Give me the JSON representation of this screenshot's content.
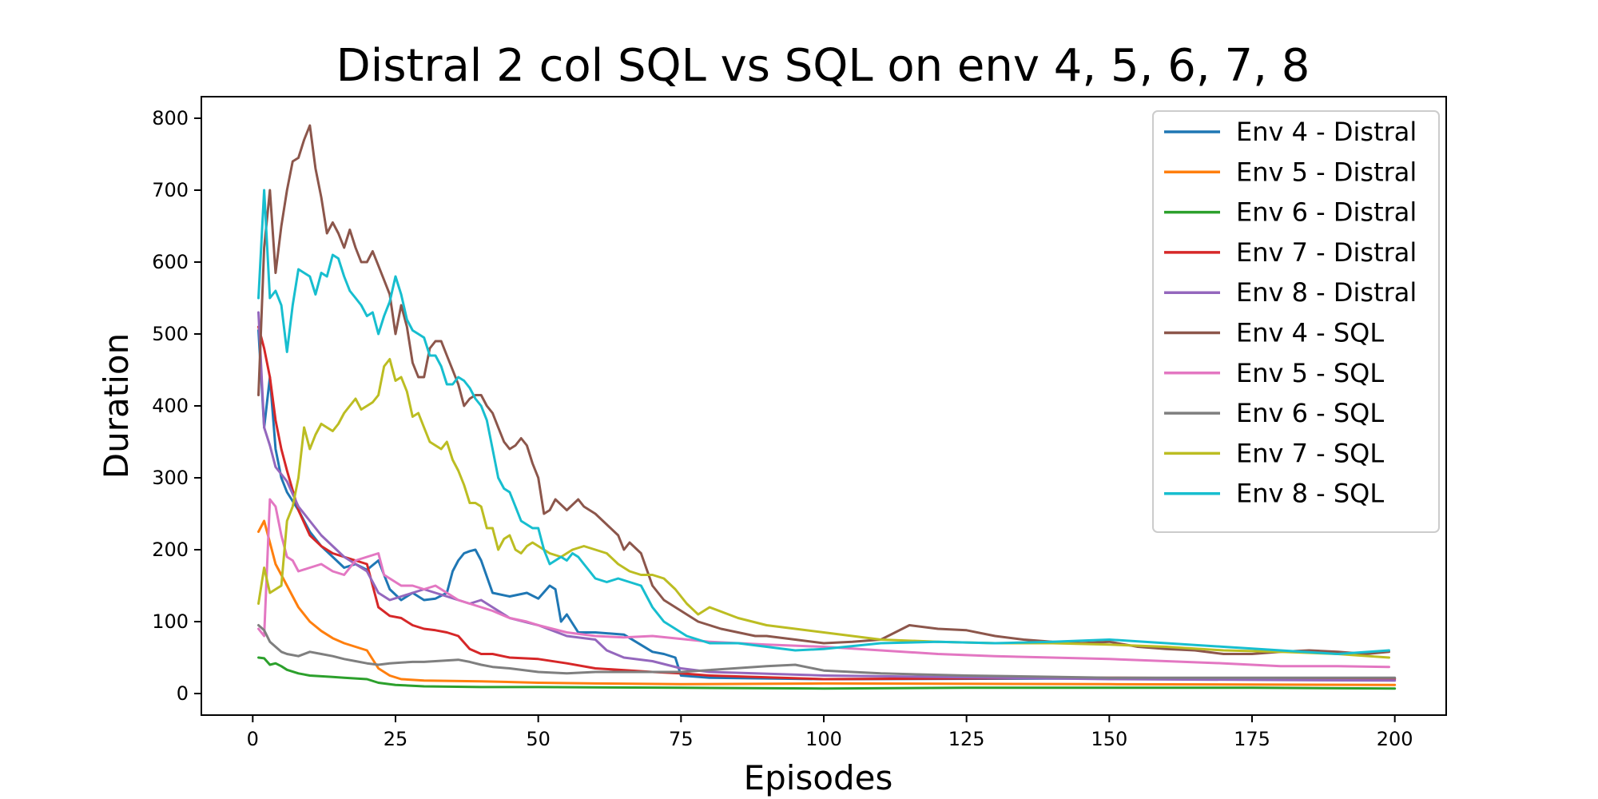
{
  "chart_data": {
    "type": "line",
    "title": "Distral 2 col SQL vs SQL on env 4, 5, 6, 7, 8",
    "xlabel": "Episodes",
    "ylabel": "Duration",
    "xlim": [
      -9,
      209
    ],
    "ylim": [
      -30,
      830
    ],
    "xticks": [
      0,
      25,
      50,
      75,
      100,
      125,
      150,
      175,
      200
    ],
    "yticks": [
      0,
      100,
      200,
      300,
      400,
      500,
      600,
      700,
      800
    ],
    "grid": false,
    "legend_position": "top-right",
    "series": [
      {
        "name": "Env 4 - Distral",
        "color": "#1f77b4",
        "x": [
          1,
          2,
          3,
          4,
          5,
          6,
          8,
          10,
          12,
          14,
          16,
          18,
          20,
          22,
          24,
          26,
          28,
          30,
          32,
          34,
          35,
          36,
          37,
          38,
          39,
          40,
          42,
          45,
          48,
          50,
          52,
          53,
          54,
          55,
          57,
          60,
          65,
          70,
          72,
          74,
          75,
          80,
          100,
          150,
          200
        ],
        "y": [
          505,
          370,
          440,
          340,
          300,
          280,
          255,
          225,
          205,
          190,
          175,
          180,
          172,
          185,
          145,
          130,
          140,
          130,
          132,
          140,
          170,
          185,
          195,
          198,
          200,
          185,
          140,
          135,
          140,
          132,
          150,
          145,
          100,
          110,
          85,
          85,
          82,
          58,
          55,
          50,
          25,
          22,
          20,
          21,
          21
        ]
      },
      {
        "name": "Env 5 - Distral",
        "color": "#ff7f0e",
        "x": [
          1,
          2,
          3,
          4,
          5,
          6,
          8,
          10,
          12,
          14,
          16,
          18,
          20,
          22,
          24,
          26,
          30,
          40,
          50,
          60,
          75,
          100,
          150,
          200
        ],
        "y": [
          225,
          240,
          210,
          180,
          165,
          150,
          120,
          100,
          87,
          77,
          70,
          65,
          60,
          35,
          25,
          20,
          18,
          17,
          15,
          14,
          13,
          14,
          13,
          12
        ]
      },
      {
        "name": "Env 6 - Distral",
        "color": "#2ca02c",
        "x": [
          1,
          2,
          3,
          4,
          5,
          6,
          8,
          10,
          12,
          14,
          16,
          18,
          20,
          22,
          25,
          30,
          40,
          50,
          75,
          100,
          125,
          150,
          175,
          200
        ],
        "y": [
          50,
          49,
          40,
          42,
          38,
          33,
          28,
          25,
          24,
          23,
          22,
          21,
          20,
          15,
          12,
          10,
          9,
          9,
          8,
          7,
          8,
          8,
          8,
          7
        ]
      },
      {
        "name": "Env 7 - Distral",
        "color": "#d62728",
        "x": [
          1,
          2,
          3,
          4,
          5,
          6,
          8,
          10,
          12,
          14,
          16,
          18,
          20,
          22,
          24,
          26,
          28,
          30,
          32,
          34,
          36,
          38,
          40,
          42,
          45,
          50,
          55,
          60,
          70,
          75,
          80,
          100,
          150,
          200
        ],
        "y": [
          510,
          480,
          440,
          380,
          340,
          310,
          255,
          220,
          205,
          195,
          190,
          185,
          180,
          120,
          108,
          105,
          95,
          90,
          88,
          85,
          80,
          62,
          55,
          55,
          50,
          48,
          42,
          35,
          30,
          28,
          25,
          20,
          22,
          20
        ]
      },
      {
        "name": "Env 8 - Distral",
        "color": "#9467bd",
        "x": [
          1,
          2,
          3,
          4,
          5,
          6,
          8,
          10,
          12,
          14,
          16,
          18,
          20,
          22,
          24,
          26,
          28,
          30,
          32,
          34,
          36,
          38,
          40,
          42,
          45,
          50,
          55,
          60,
          62,
          65,
          70,
          75,
          80,
          100,
          150,
          200
        ],
        "y": [
          530,
          370,
          345,
          315,
          305,
          295,
          260,
          240,
          220,
          205,
          190,
          180,
          170,
          140,
          130,
          135,
          140,
          145,
          140,
          135,
          130,
          125,
          130,
          120,
          105,
          95,
          80,
          75,
          60,
          50,
          45,
          35,
          30,
          25,
          20,
          18
        ]
      },
      {
        "name": "Env 4 - SQL",
        "color": "#8c564b",
        "x": [
          1,
          2,
          3,
          4,
          5,
          6,
          7,
          8,
          9,
          10,
          11,
          12,
          13,
          14,
          15,
          16,
          17,
          18,
          19,
          20,
          21,
          22,
          23,
          24,
          25,
          26,
          27,
          28,
          29,
          30,
          31,
          32,
          33,
          34,
          35,
          36,
          37,
          38,
          39,
          40,
          41,
          42,
          43,
          44,
          45,
          46,
          47,
          48,
          49,
          50,
          51,
          52,
          53,
          55,
          57,
          58,
          60,
          62,
          64,
          65,
          66,
          68,
          70,
          72,
          74,
          76,
          78,
          80,
          82,
          85,
          88,
          90,
          95,
          100,
          105,
          110,
          115,
          120,
          125,
          130,
          135,
          140,
          145,
          150,
          155,
          160,
          165,
          170,
          175,
          180,
          185,
          190,
          195,
          199
        ],
        "y": [
          415,
          620,
          700,
          585,
          650,
          700,
          740,
          745,
          770,
          790,
          730,
          690,
          640,
          655,
          640,
          620,
          645,
          620,
          600,
          600,
          615,
          595,
          575,
          555,
          500,
          540,
          510,
          460,
          440,
          440,
          480,
          490,
          490,
          470,
          450,
          430,
          400,
          410,
          415,
          415,
          400,
          390,
          370,
          350,
          340,
          345,
          355,
          345,
          320,
          300,
          250,
          255,
          270,
          255,
          270,
          260,
          250,
          235,
          220,
          200,
          210,
          195,
          150,
          130,
          120,
          110,
          100,
          95,
          90,
          85,
          80,
          80,
          75,
          70,
          72,
          75,
          95,
          90,
          88,
          80,
          75,
          72,
          70,
          72,
          65,
          62,
          60,
          55,
          55,
          58,
          60,
          58,
          55,
          58
        ]
      },
      {
        "name": "Env 5 - SQL",
        "color": "#e377c2",
        "x": [
          1,
          2,
          3,
          4,
          5,
          6,
          7,
          8,
          10,
          12,
          14,
          16,
          18,
          20,
          22,
          23,
          24,
          26,
          28,
          30,
          32,
          34,
          36,
          38,
          40,
          42,
          45,
          48,
          50,
          55,
          60,
          65,
          70,
          75,
          80,
          90,
          100,
          110,
          120,
          130,
          140,
          150,
          160,
          170,
          180,
          190,
          199
        ],
        "y": [
          90,
          80,
          270,
          260,
          220,
          190,
          185,
          170,
          175,
          180,
          170,
          165,
          185,
          190,
          195,
          165,
          160,
          150,
          150,
          145,
          150,
          140,
          130,
          125,
          120,
          115,
          105,
          100,
          95,
          85,
          80,
          78,
          80,
          76,
          72,
          68,
          65,
          60,
          55,
          52,
          50,
          48,
          45,
          42,
          38,
          38,
          37
        ]
      },
      {
        "name": "Env 6 - SQL",
        "color": "#7f7f7f",
        "x": [
          1,
          2,
          3,
          4,
          5,
          6,
          8,
          10,
          12,
          14,
          16,
          18,
          20,
          22,
          24,
          26,
          28,
          30,
          32,
          34,
          36,
          38,
          40,
          42,
          45,
          50,
          55,
          60,
          75,
          90,
          95,
          100,
          110,
          125,
          150,
          175,
          200
        ],
        "y": [
          95,
          88,
          72,
          65,
          58,
          55,
          52,
          58,
          55,
          52,
          48,
          45,
          42,
          40,
          42,
          43,
          44,
          44,
          45,
          46,
          47,
          44,
          40,
          37,
          35,
          30,
          28,
          30,
          30,
          38,
          40,
          32,
          28,
          25,
          22,
          22,
          22
        ]
      },
      {
        "name": "Env 7 - SQL",
        "color": "#bcbd22",
        "x": [
          1,
          2,
          3,
          4,
          5,
          6,
          7,
          8,
          9,
          10,
          11,
          12,
          13,
          14,
          15,
          16,
          17,
          18,
          19,
          20,
          21,
          22,
          23,
          24,
          25,
          26,
          27,
          28,
          29,
          30,
          31,
          32,
          33,
          34,
          35,
          36,
          37,
          38,
          39,
          40,
          41,
          42,
          43,
          44,
          45,
          46,
          47,
          48,
          49,
          50,
          52,
          54,
          56,
          58,
          60,
          62,
          64,
          66,
          68,
          70,
          72,
          74,
          76,
          78,
          80,
          85,
          90,
          95,
          100,
          110,
          120,
          130,
          140,
          150,
          160,
          170,
          180,
          190,
          199
        ],
        "y": [
          125,
          175,
          140,
          145,
          150,
          240,
          260,
          300,
          370,
          340,
          360,
          375,
          370,
          365,
          375,
          390,
          400,
          410,
          395,
          400,
          405,
          415,
          455,
          465,
          435,
          440,
          420,
          385,
          390,
          370,
          350,
          345,
          340,
          350,
          325,
          310,
          290,
          265,
          265,
          260,
          230,
          230,
          200,
          215,
          220,
          200,
          195,
          205,
          210,
          205,
          195,
          190,
          200,
          205,
          200,
          195,
          180,
          170,
          165,
          165,
          160,
          145,
          125,
          110,
          120,
          105,
          95,
          90,
          85,
          75,
          72,
          70,
          70,
          68,
          65,
          60,
          58,
          55,
          50
        ]
      },
      {
        "name": "Env 8 - SQL",
        "color": "#17becf",
        "x": [
          1,
          2,
          3,
          4,
          5,
          6,
          7,
          8,
          9,
          10,
          11,
          12,
          13,
          14,
          15,
          16,
          17,
          18,
          19,
          20,
          21,
          22,
          23,
          24,
          25,
          26,
          27,
          28,
          29,
          30,
          31,
          32,
          33,
          34,
          35,
          36,
          37,
          38,
          39,
          40,
          41,
          42,
          43,
          44,
          45,
          46,
          47,
          48,
          49,
          50,
          51,
          52,
          53,
          54,
          55,
          56,
          57,
          58,
          59,
          60,
          62,
          64,
          66,
          68,
          70,
          72,
          74,
          76,
          78,
          80,
          85,
          90,
          95,
          100,
          110,
          120,
          130,
          140,
          150,
          160,
          170,
          180,
          190,
          199
        ],
        "y": [
          550,
          700,
          550,
          560,
          540,
          475,
          540,
          590,
          585,
          580,
          555,
          585,
          580,
          610,
          605,
          580,
          560,
          550,
          540,
          525,
          530,
          500,
          525,
          545,
          580,
          555,
          520,
          505,
          500,
          495,
          470,
          470,
          455,
          430,
          430,
          440,
          435,
          425,
          410,
          400,
          380,
          340,
          300,
          285,
          280,
          260,
          240,
          235,
          230,
          230,
          200,
          180,
          185,
          190,
          185,
          195,
          190,
          180,
          170,
          160,
          155,
          160,
          155,
          150,
          120,
          100,
          90,
          80,
          75,
          70,
          70,
          65,
          60,
          62,
          70,
          72,
          70,
          72,
          75,
          70,
          65,
          60,
          55,
          60
        ]
      }
    ]
  }
}
